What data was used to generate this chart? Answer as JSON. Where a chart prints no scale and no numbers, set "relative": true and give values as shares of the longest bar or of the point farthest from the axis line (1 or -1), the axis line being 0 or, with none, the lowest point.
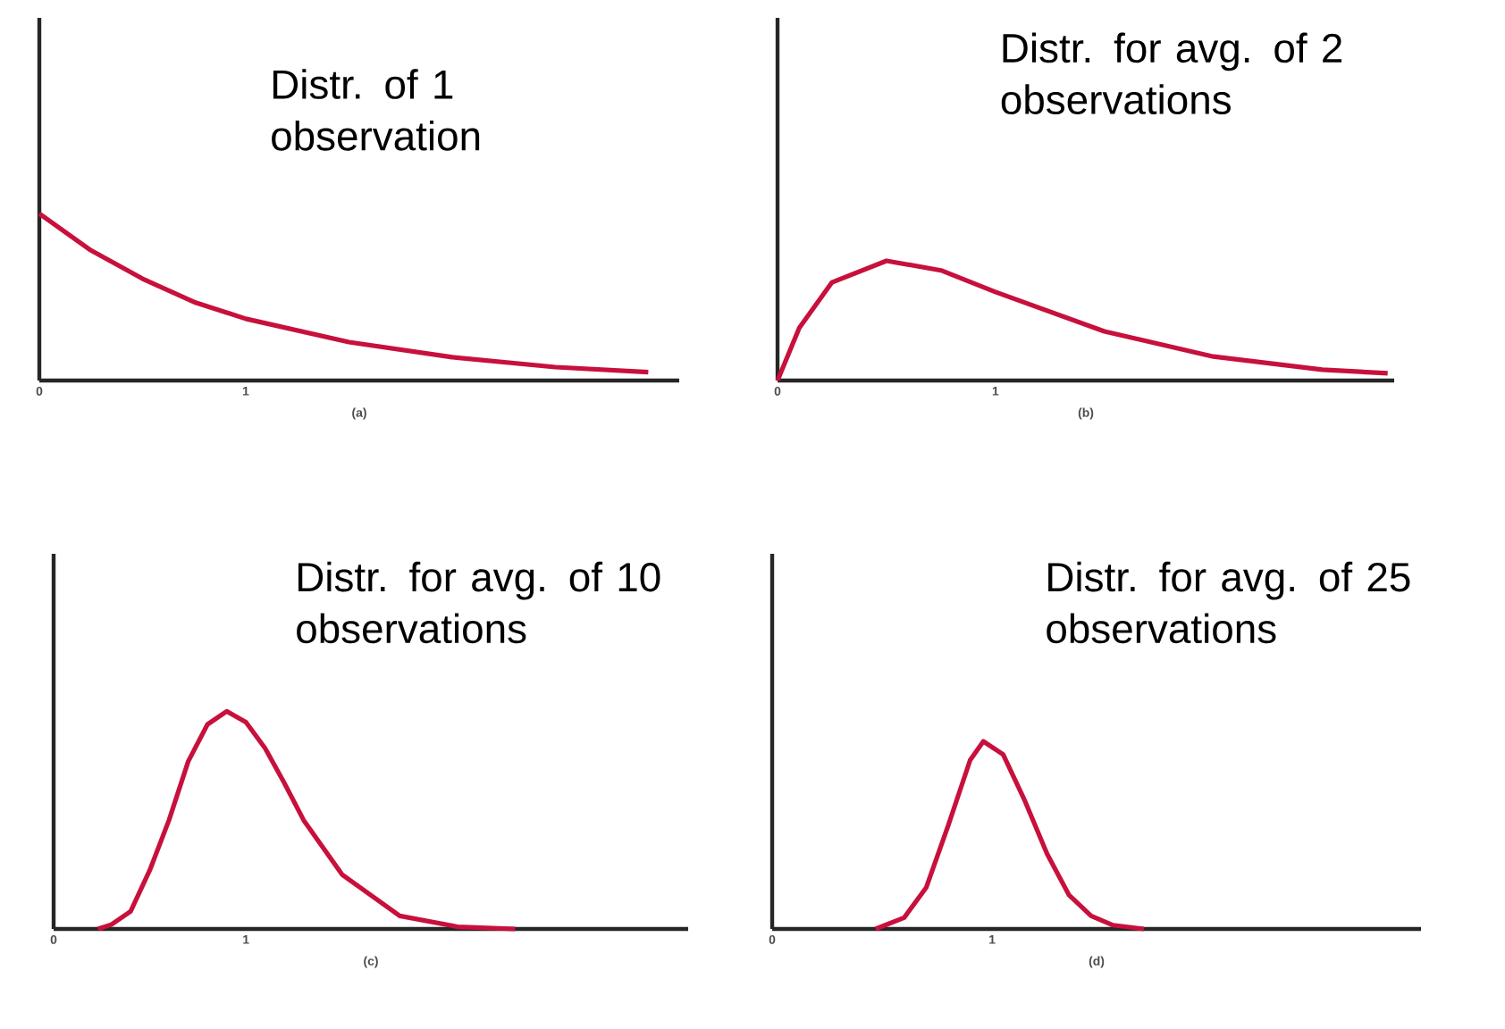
{
  "chart_data": [
    {
      "type": "line",
      "relative": true,
      "xlabel": "(a)",
      "xlim": [
        0,
        3.1
      ],
      "xticks": [
        0,
        1
      ],
      "color": "#c8103c",
      "annotations": [
        "Distr. of 1 observation"
      ],
      "x": [
        0,
        0.25,
        0.5,
        0.75,
        1,
        1.5,
        2,
        2.5,
        2.95
      ],
      "values": [
        1,
        0.78,
        0.61,
        0.47,
        0.37,
        0.23,
        0.14,
        0.08,
        0.05
      ]
    },
    {
      "type": "line",
      "relative": true,
      "xlabel": "(b)",
      "xlim": [
        0,
        2.83
      ],
      "xticks": [
        0,
        1
      ],
      "color": "#c8103c",
      "annotations": [
        "Distr. for avg. of 2 observations"
      ],
      "x": [
        0,
        0.1,
        0.25,
        0.5,
        0.75,
        1,
        1.5,
        2,
        2.5,
        2.8
      ],
      "values": [
        0,
        0.44,
        0.82,
        1,
        0.92,
        0.74,
        0.41,
        0.2,
        0.09,
        0.06
      ]
    },
    {
      "type": "line",
      "relative": true,
      "xlabel": "(c)",
      "xlim": [
        0,
        3.3
      ],
      "xticks": [
        0,
        1
      ],
      "color": "#c8103c",
      "annotations": [
        "Distr. for avg. of 10 observations"
      ],
      "x": [
        0.23,
        0.3,
        0.4,
        0.5,
        0.6,
        0.7,
        0.8,
        0.9,
        1,
        1.1,
        1.2,
        1.3,
        1.5,
        1.8,
        2.1,
        2.4
      ],
      "values": [
        0,
        0.02,
        0.08,
        0.27,
        0.5,
        0.77,
        0.94,
        1,
        0.95,
        0.83,
        0.67,
        0.5,
        0.25,
        0.06,
        0.01,
        0
      ]
    },
    {
      "type": "line",
      "relative": true,
      "xlabel": "(d)",
      "xlim": [
        0,
        2.95
      ],
      "xticks": [
        0,
        1
      ],
      "color": "#c8103c",
      "annotations": [
        "Distr.  for avg. of 25 observations"
      ],
      "x": [
        0.47,
        0.6,
        0.7,
        0.8,
        0.9,
        0.96,
        1.05,
        1.15,
        1.25,
        1.35,
        1.45,
        1.55,
        1.69
      ],
      "values": [
        0,
        0.06,
        0.22,
        0.55,
        0.9,
        1,
        0.93,
        0.68,
        0.4,
        0.18,
        0.07,
        0.02,
        0
      ]
    }
  ]
}
